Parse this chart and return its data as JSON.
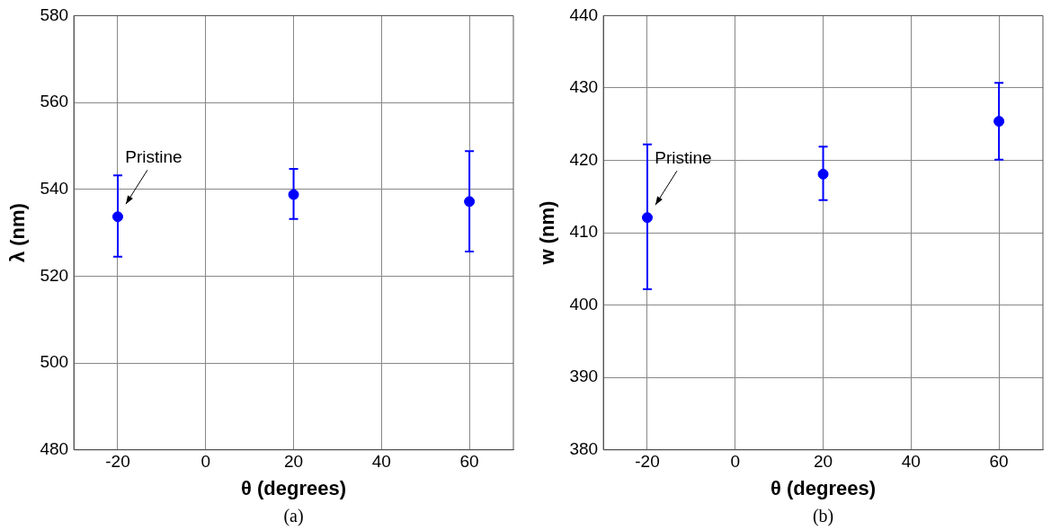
{
  "chart_data": [
    {
      "type": "scatter",
      "xlabel": "θ (degrees)",
      "ylabel": "λ (nm)",
      "x": [
        -20,
        20,
        60
      ],
      "series": [
        {
          "color": "#0000ff",
          "values": [
            533.7,
            538.8,
            537.2
          ],
          "errors": [
            [
              524.5,
              543.2
            ],
            [
              533.2,
              544.7
            ],
            [
              525.7,
              548.8
            ]
          ]
        }
      ],
      "xlim": [
        -30,
        70
      ],
      "xticks": [
        -20,
        0,
        20,
        40,
        60
      ],
      "ylim": [
        480,
        580
      ],
      "yticks": [
        480,
        500,
        520,
        540,
        560,
        580
      ],
      "grid": true,
      "marker": "circle",
      "annotations": [
        {
          "text": "Pristine",
          "x": -20,
          "y": 533.7
        },
        "(a)"
      ]
    },
    {
      "type": "scatter",
      "xlabel": "θ (degrees)",
      "ylabel": "w (nm)",
      "x": [
        -20,
        20,
        60
      ],
      "series": [
        {
          "color": "#0000ff",
          "values": [
            412.1,
            418.1,
            425.4
          ],
          "errors": [
            [
              402.2,
              422.2
            ],
            [
              414.5,
              421.9
            ],
            [
              420.1,
              430.7
            ]
          ]
        }
      ],
      "xlim": [
        -30,
        70
      ],
      "xticks": [
        -20,
        0,
        20,
        40,
        60
      ],
      "ylim": [
        380,
        440
      ],
      "yticks": [
        380,
        390,
        400,
        410,
        420,
        430,
        440
      ],
      "grid": true,
      "marker": "circle",
      "annotations": [
        {
          "text": "Pristine",
          "x": -20,
          "y": 412.1
        },
        "(b)"
      ]
    }
  ]
}
